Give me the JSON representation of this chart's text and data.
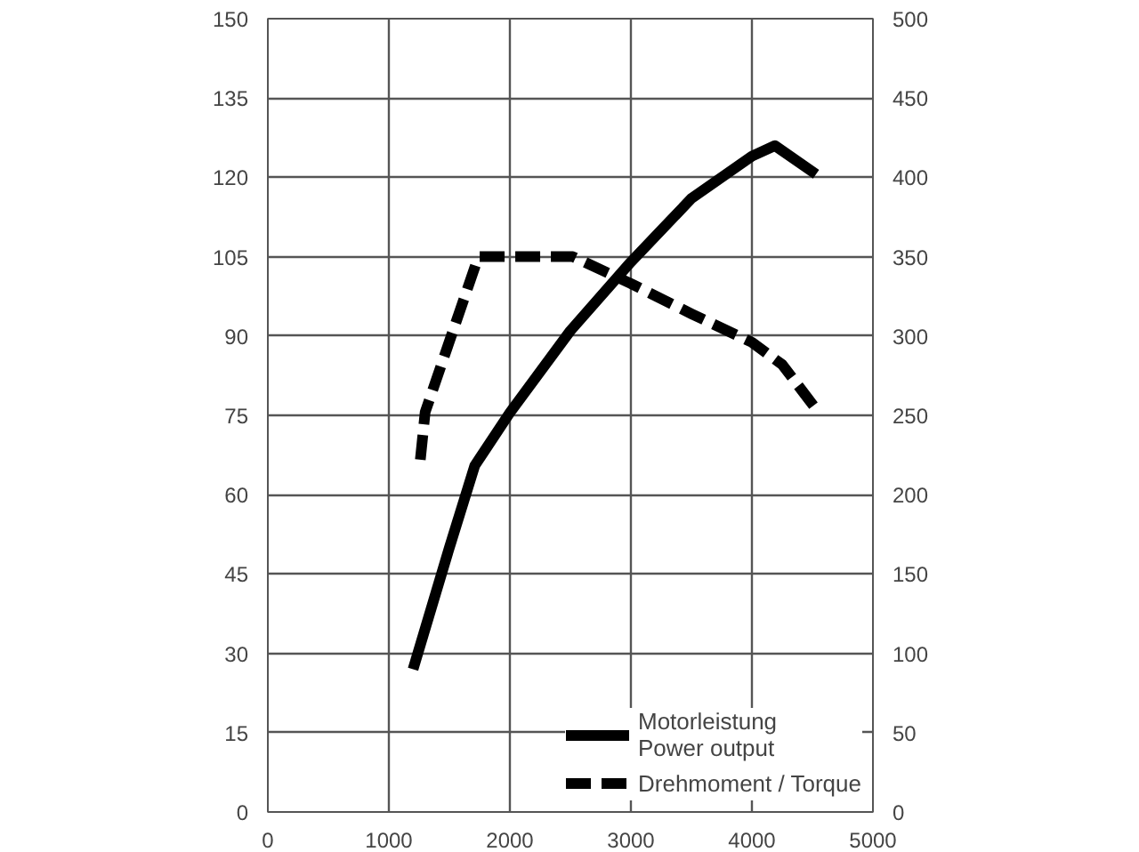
{
  "chart_data": {
    "type": "line",
    "series": [
      {
        "name": "Motorleistung\nPower output",
        "color": "#000000",
        "line_style": "solid",
        "x": [
          1200,
          1500,
          1710,
          2000,
          2500,
          3000,
          3500,
          4000,
          4190,
          4530
        ],
        "values": [
          27,
          50,
          65.5,
          75.5,
          91,
          104,
          116,
          124,
          126,
          120.6
        ]
      },
      {
        "name": "Drehmoment / Torque",
        "color": "#000000",
        "line_style": "dashed",
        "axis": "y2",
        "x": [
          1260,
          1300,
          1740,
          2520,
          3000,
          3500,
          4000,
          4250,
          4520
        ],
        "values": [
          222,
          252,
          350,
          350,
          333,
          314,
          296,
          282,
          255
        ]
      }
    ],
    "xlim": [
      0,
      5000
    ],
    "xticks": [
      0,
      1000,
      2000,
      3000,
      4000,
      5000
    ],
    "ylim": [
      0,
      150
    ],
    "yticks": [
      0,
      15,
      30,
      45,
      60,
      75,
      90,
      105,
      120,
      135,
      150
    ],
    "y2lim": [
      0,
      500
    ],
    "y2ticks": [
      0,
      50,
      100,
      150,
      200,
      250,
      300,
      350,
      400,
      450,
      500
    ],
    "grid": true,
    "legend": "bottom right",
    "marker": "none"
  }
}
